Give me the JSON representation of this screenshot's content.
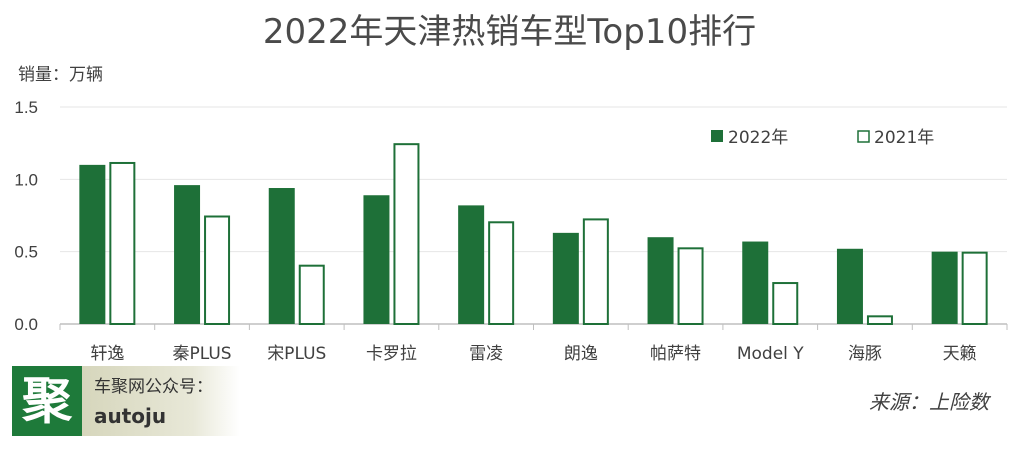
{
  "title": "2022年天津热销车型Top10排行",
  "unit_label": "销量：万辆",
  "source": "来源：上险数",
  "logo": {
    "glyph": "聚",
    "line1": "车聚网公众号：",
    "line2": "autoju"
  },
  "colors": {
    "series_2022": "#1e7038",
    "series_2021_border": "#1e7038",
    "series_2021_fill": "#ffffff",
    "grid": "#e6e6e6",
    "axis": "#bfbfbf"
  },
  "chart_data": {
    "type": "bar",
    "title": "2022年天津热销车型Top10排行",
    "ylabel": "销量：万辆",
    "xlabel": "",
    "ylim": [
      0,
      1.5
    ],
    "yticks": [
      "0.0",
      "0.5",
      "1.0",
      "1.5"
    ],
    "grid": true,
    "legend_position": "top-right",
    "categories": [
      "轩逸",
      "秦PLUS",
      "宋PLUS",
      "卡罗拉",
      "雷凌",
      "朗逸",
      "帕萨特",
      "Model Y",
      "海豚",
      "天籁"
    ],
    "series": [
      {
        "name": "2022年",
        "values": [
          1.1,
          0.96,
          0.94,
          0.89,
          0.82,
          0.63,
          0.6,
          0.57,
          0.52,
          0.5
        ]
      },
      {
        "name": "2021年",
        "values": [
          1.12,
          0.75,
          0.41,
          1.25,
          0.71,
          0.73,
          0.53,
          0.29,
          0.06,
          0.5
        ]
      }
    ]
  }
}
